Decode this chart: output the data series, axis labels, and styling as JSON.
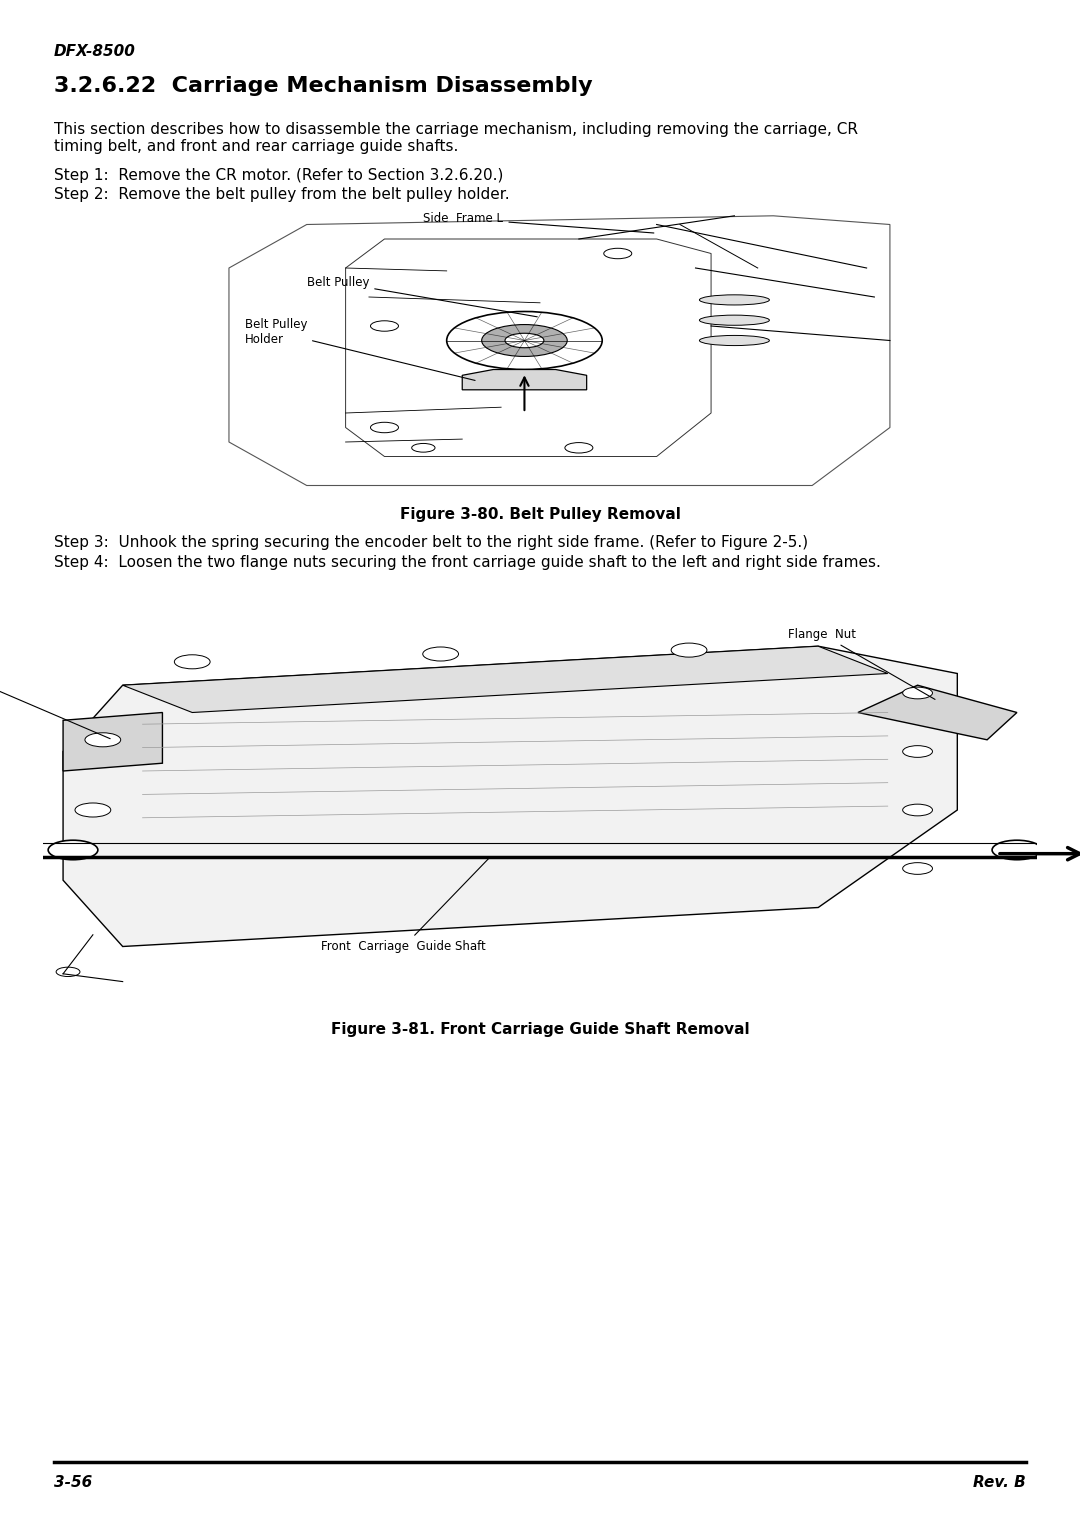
{
  "page_background": "#ffffff",
  "header_text": "DFX-8500",
  "title_text": "3.2.6.22  Carriage Mechanism Disassembly",
  "body_text_1": "This section describes how to disassemble the carriage mechanism, including removing the carriage, CR\ntiming belt, and front and rear carriage guide shafts.",
  "step1": "Step 1:  Remove the CR motor. (Refer to Section 3.2.6.20.)",
  "step2": "Step 2:  Remove the belt pulley from the belt pulley holder.",
  "fig80_caption": "Figure 3-80. Belt Pulley Removal",
  "step3": "Step 3:  Unhook the spring securing the encoder belt to the right side frame. (Refer to Figure 2-5.)",
  "step4": "Step 4:  Loosen the two flange nuts securing the front carriage guide shaft to the left and right side frames.",
  "fig81_caption": "Figure 3-81. Front Carriage Guide Shaft Removal",
  "footer_left": "3-56",
  "footer_right": "Rev. B"
}
